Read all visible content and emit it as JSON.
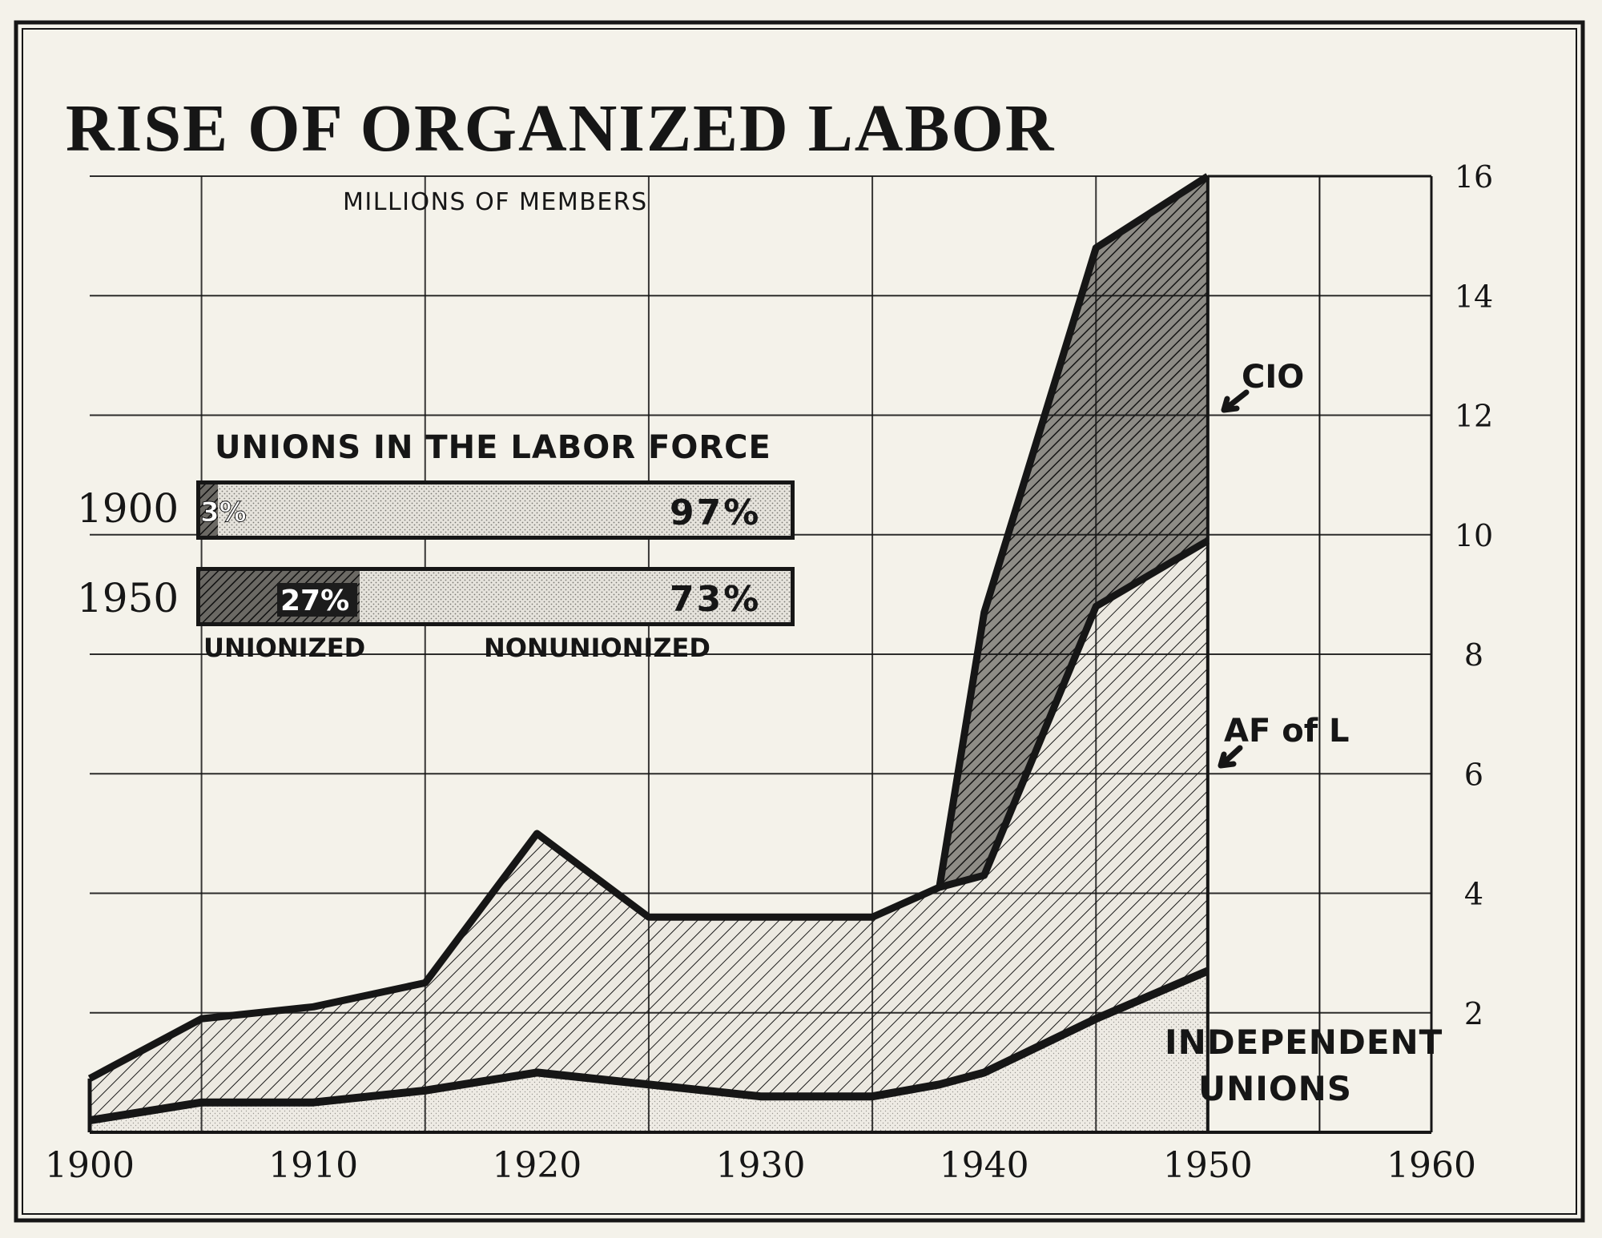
{
  "chart_data": {
    "type": "area",
    "title": "RISE OF ORGANIZED LABOR",
    "subtitle": "MILLIONS OF MEMBERS",
    "x": [
      1900,
      1905,
      1910,
      1915,
      1920,
      1925,
      1930,
      1935,
      1938,
      1940,
      1945,
      1950
    ],
    "x_ticks": [
      "1900",
      "1910",
      "1920",
      "1930",
      "1940",
      "1950",
      "1960"
    ],
    "x_tick_values": [
      1900,
      1910,
      1920,
      1930,
      1940,
      1950,
      1960
    ],
    "y_ticks": [
      "2",
      "4",
      "6",
      "8",
      "10",
      "12",
      "14",
      "16"
    ],
    "y_tick_values": [
      2,
      4,
      6,
      8,
      10,
      12,
      14,
      16
    ],
    "xlim": [
      1900,
      1960
    ],
    "ylim": [
      0,
      16
    ],
    "grid": true,
    "y_axis_side": "right",
    "series": [
      {
        "name": "INDEPENDENT UNIONS",
        "top": [
          0.2,
          0.5,
          0.5,
          0.7,
          1.0,
          0.8,
          0.6,
          0.6,
          0.8,
          1.0,
          1.9,
          2.7
        ],
        "fill": "#d8d6cf"
      },
      {
        "name": "AF of L",
        "top": [
          0.9,
          1.9,
          2.1,
          2.5,
          5.0,
          3.6,
          3.6,
          3.6,
          4.1,
          4.3,
          8.8,
          9.9
        ],
        "fill": "#e0ddd5"
      },
      {
        "name": "CIO",
        "top": [
          null,
          null,
          null,
          null,
          null,
          null,
          null,
          null,
          4.1,
          8.7,
          14.8,
          16.0
        ],
        "fill": "#8a8882"
      }
    ],
    "series_labels": {
      "cio": "CIO",
      "afl": "AF of L",
      "independent_line1": "INDEPENDENT",
      "independent_line2": "UNIONS"
    },
    "inset": {
      "title": "UNIONS IN THE LABOR FORCE",
      "rows": [
        {
          "year": "1900",
          "unionized": 3,
          "nonunionized": 97,
          "unionized_label": "3%",
          "nonunionized_label": "97%"
        },
        {
          "year": "1950",
          "unionized": 27,
          "nonunionized": 73,
          "unionized_label": "27%",
          "nonunionized_label": "73%"
        }
      ],
      "legend": {
        "unionized": "UNIONIZED",
        "nonunionized": "NONUNIONIZED"
      }
    }
  },
  "colors": {
    "background": "#f4f2ea",
    "ink": "#161616",
    "dark_fill": "#8a8882",
    "light_fill": "#e0ddd5",
    "stipple": "#d8d6cf"
  }
}
